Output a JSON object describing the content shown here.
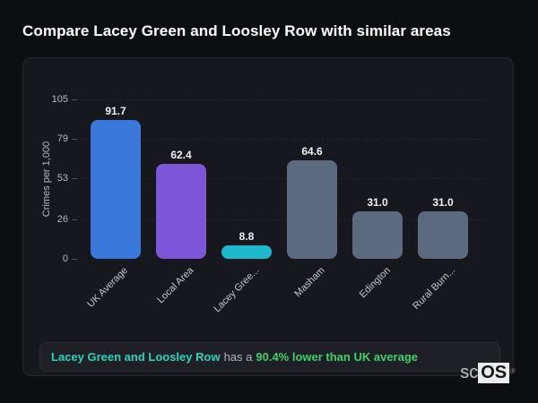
{
  "page": {
    "title": "Compare Lacey Green and Loosley Row with similar areas"
  },
  "chart_data": {
    "type": "bar",
    "title": "Compare Lacey Green and Loosley Row with similar areas",
    "xlabel": "",
    "ylabel": "Crimes per 1,000",
    "ylim": [
      0,
      105
    ],
    "yticks": [
      0,
      26,
      53,
      79,
      105
    ],
    "grid": "horizontal-dashed",
    "legend": "none",
    "categories": [
      "UK Average",
      "Local Area",
      "Lacey Gree...",
      "Masham",
      "Edington",
      "Rural Burn..."
    ],
    "values": [
      91.7,
      62.4,
      8.8,
      64.6,
      31.0,
      31.0
    ],
    "bar_colors": [
      "#3b78dc",
      "#7c55d9",
      "#1cb9cc",
      "#5c6a80",
      "#5c6a80",
      "#5c6a80"
    ]
  },
  "summary": {
    "area_text": "Lacey Green and Loosley Row",
    "middle_text": "has a",
    "stat_text": "90.4% lower than UK average",
    "area_color": "#2bd4b9",
    "stat_color": "#3ed06b"
  },
  "branding": {
    "logo_prefix": "sc",
    "logo_suffix": "OS",
    "registered_mark": "®"
  }
}
